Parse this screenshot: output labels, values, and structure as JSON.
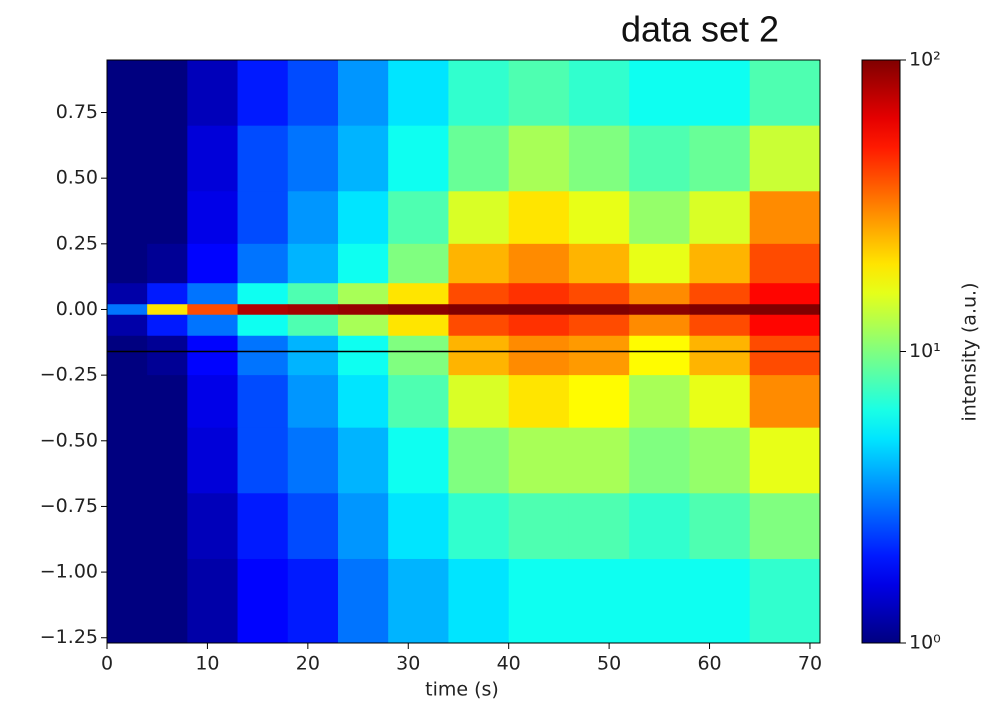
{
  "chart_data": {
    "type": "heatmap",
    "title": "data set 2",
    "x_label": "time (s)",
    "colorbar_label": "intensity (a.u.)",
    "colormap": "jet",
    "color_scale": "log",
    "xlim": [
      0,
      71
    ],
    "ylim": [
      -1.27,
      0.95
    ],
    "xticks": [
      0,
      10,
      20,
      30,
      40,
      50,
      60,
      70
    ],
    "yticks": [
      {
        "value": 0.75,
        "label": "0.75"
      },
      {
        "value": 0.5,
        "label": "0.50"
      },
      {
        "value": 0.25,
        "label": "0.25"
      },
      {
        "value": 0,
        "label": "0.00"
      },
      {
        "value": -0.25,
        "label": "−0.25"
      },
      {
        "value": -0.5,
        "label": "−0.50"
      },
      {
        "value": -0.75,
        "label": "−0.75"
      },
      {
        "value": -1,
        "label": "−1.00"
      },
      {
        "value": -1.25,
        "label": "−1.25"
      }
    ],
    "clim": [
      1,
      100
    ],
    "cticks": [
      {
        "value": 1,
        "label": "10⁰"
      },
      {
        "value": 10,
        "label": "10¹"
      },
      {
        "value": 100,
        "label": "10²"
      }
    ],
    "hline": -0.16,
    "hline_color": "#000000",
    "x": [
      0,
      4,
      8,
      13,
      18,
      23,
      28,
      34,
      40,
      46,
      52,
      58,
      64,
      71
    ],
    "y": [
      0.95,
      0.7,
      0.45,
      0.25,
      0.1,
      0.02,
      -0.02,
      -0.1,
      -0.25,
      -0.45,
      -0.7,
      -0.95,
      -1.27
    ],
    "z": [
      [
        1,
        1,
        1.3,
        2,
        2.5,
        3.5,
        5,
        7,
        8,
        7,
        6,
        6,
        8
      ],
      [
        1,
        1,
        1.5,
        2.5,
        3,
        4,
        6,
        9,
        12,
        10,
        8,
        9,
        14
      ],
      [
        1,
        1,
        1.6,
        2.5,
        3.5,
        5,
        8,
        15,
        20,
        16,
        11,
        15,
        30
      ],
      [
        1,
        1.1,
        1.8,
        3,
        4,
        6,
        10,
        25,
        30,
        25,
        16,
        25,
        40
      ],
      [
        1.2,
        2,
        3,
        6,
        8,
        12,
        20,
        40,
        45,
        40,
        30,
        40,
        55
      ],
      [
        3,
        20,
        40,
        80,
        85,
        90,
        95,
        100,
        100,
        100,
        95,
        100,
        100
      ],
      [
        1.2,
        2,
        3,
        6,
        8,
        12,
        20,
        40,
        45,
        40,
        30,
        40,
        55
      ],
      [
        1,
        1.1,
        1.8,
        3,
        4,
        6,
        10,
        25,
        30,
        28,
        18,
        25,
        40
      ],
      [
        1,
        1,
        1.6,
        2.5,
        3.5,
        5,
        8,
        15,
        20,
        18,
        12,
        16,
        30
      ],
      [
        1,
        1,
        1.5,
        2.5,
        3,
        4,
        6,
        10,
        12,
        12,
        10,
        11,
        16
      ],
      [
        1,
        1,
        1.3,
        2,
        2.5,
        3.5,
        5,
        7,
        8,
        8,
        7,
        8,
        10
      ],
      [
        1,
        1,
        1.2,
        1.8,
        2,
        3,
        4,
        5,
        6,
        6,
        6,
        6,
        7
      ]
    ]
  }
}
